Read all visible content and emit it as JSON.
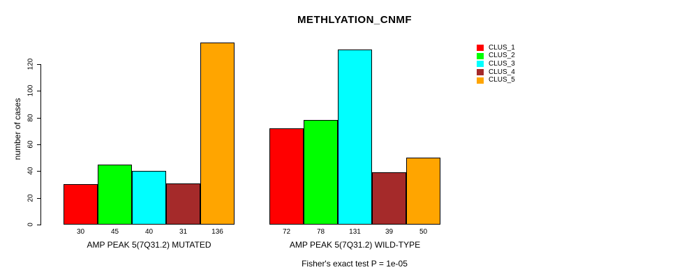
{
  "chart_data": {
    "type": "bar",
    "title": "METHLYATION_CNMF",
    "ylabel": "number of cases",
    "xlabel": "",
    "ylim": [
      0,
      136
    ],
    "yticks": [
      0,
      20,
      40,
      60,
      80,
      100,
      120
    ],
    "grid": false,
    "legend_position": "right",
    "categories": [
      "AMP PEAK 5(7Q31.2) MUTATED",
      "AMP PEAK 5(7Q31.2) WILD-TYPE"
    ],
    "series": [
      {
        "name": "CLUS_1",
        "color": "#ff0000",
        "values": [
          30,
          72
        ]
      },
      {
        "name": "CLUS_2",
        "color": "#00ff00",
        "values": [
          45,
          78
        ]
      },
      {
        "name": "CLUS_3",
        "color": "#00ffff",
        "values": [
          40,
          131
        ]
      },
      {
        "name": "CLUS_4",
        "color": "#a52a2a",
        "values": [
          31,
          39
        ]
      },
      {
        "name": "CLUS_5",
        "color": "#ffa500",
        "values": [
          136,
          50
        ]
      }
    ],
    "bar_value_labels_shown": true,
    "annotation": "Fisher's exact test P = 1e-05"
  }
}
